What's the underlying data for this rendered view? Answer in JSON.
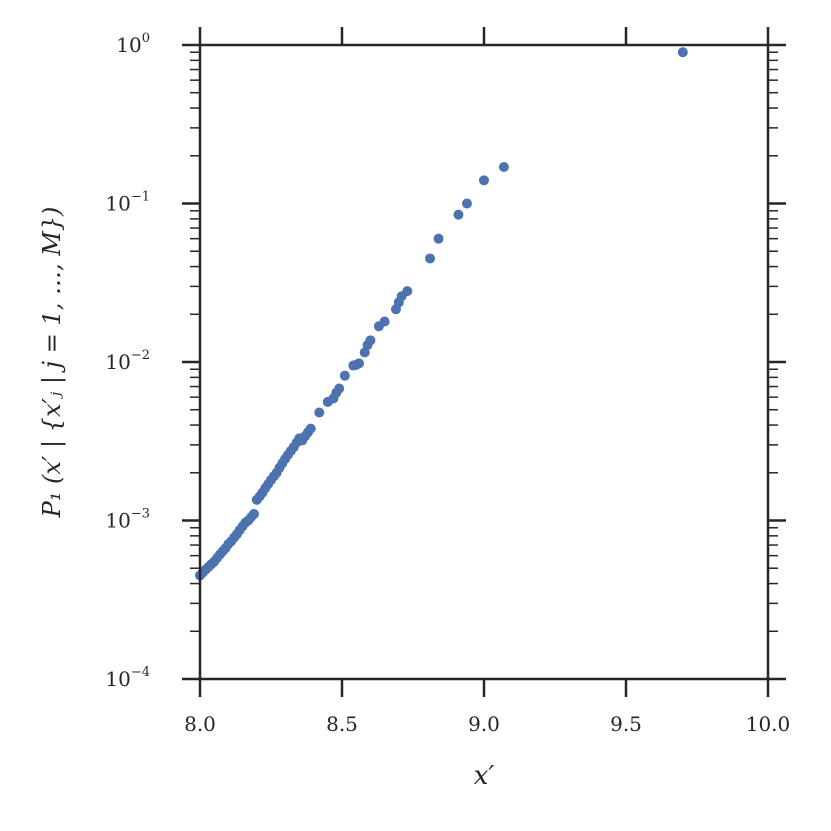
{
  "chart_data": {
    "type": "scatter",
    "title": "",
    "xlabel": "x′",
    "ylabel": "P₁ (x′ | {x′ⱼ | j = 1, …, M})",
    "xlim": [
      8.0,
      10.0
    ],
    "ylim": [
      0.0001,
      1
    ],
    "yscale": "log",
    "grid": false,
    "legend": "none",
    "marker_color": "#4c72b0",
    "x_ticks": [
      {
        "value": 8.0,
        "label": "8.0"
      },
      {
        "value": 8.5,
        "label": "8.5"
      },
      {
        "value": 9.0,
        "label": "9.0"
      },
      {
        "value": 9.5,
        "label": "9.5"
      },
      {
        "value": 10.0,
        "label": "10.0"
      }
    ],
    "y_ticks": [
      {
        "value": 1,
        "base": "10",
        "exp": "0"
      },
      {
        "value": 0.1,
        "base": "10",
        "exp": "−1"
      },
      {
        "value": 0.01,
        "base": "10",
        "exp": "−2"
      },
      {
        "value": 0.001,
        "base": "10",
        "exp": "−3"
      },
      {
        "value": 0.0001,
        "base": "10",
        "exp": "−4"
      }
    ],
    "series": [
      {
        "x": [
          8.0,
          8.01,
          8.02,
          8.03,
          8.04,
          8.05,
          8.06,
          8.07,
          8.08,
          8.09,
          8.1,
          8.11,
          8.12,
          8.13,
          8.14,
          8.15,
          8.16,
          8.17,
          8.18,
          8.19,
          8.2,
          8.21,
          8.22,
          8.23,
          8.24,
          8.25,
          8.26,
          8.27,
          8.28,
          8.29,
          8.3,
          8.31,
          8.32,
          8.33,
          8.34,
          8.35,
          8.36,
          8.37,
          8.38,
          8.39,
          8.42,
          8.45,
          8.47,
          8.48,
          8.49,
          8.51,
          8.54,
          8.55,
          8.56,
          8.58,
          8.59,
          8.6,
          8.63,
          8.65,
          8.69,
          8.7,
          8.71,
          8.73,
          8.81,
          8.84,
          8.91,
          8.94,
          9.0,
          9.07,
          9.7
        ],
        "y": [
          0.00045,
          0.00047,
          0.00049,
          0.00051,
          0.00053,
          0.00055,
          0.00058,
          0.00061,
          0.00064,
          0.00067,
          0.00071,
          0.00074,
          0.00078,
          0.00082,
          0.00087,
          0.00092,
          0.00097,
          0.001,
          0.00105,
          0.0011,
          0.00135,
          0.00142,
          0.0015,
          0.0016,
          0.0017,
          0.0018,
          0.0019,
          0.002,
          0.00215,
          0.0023,
          0.00245,
          0.0026,
          0.00275,
          0.0029,
          0.0031,
          0.0033,
          0.0032,
          0.0034,
          0.0036,
          0.0038,
          0.0048,
          0.0056,
          0.0059,
          0.0064,
          0.0068,
          0.0082,
          0.0095,
          0.0096,
          0.0098,
          0.0115,
          0.0128,
          0.0137,
          0.0168,
          0.018,
          0.0215,
          0.0238,
          0.026,
          0.028,
          0.045,
          0.06,
          0.085,
          0.1,
          0.14,
          0.17,
          0.9
        ]
      }
    ]
  }
}
